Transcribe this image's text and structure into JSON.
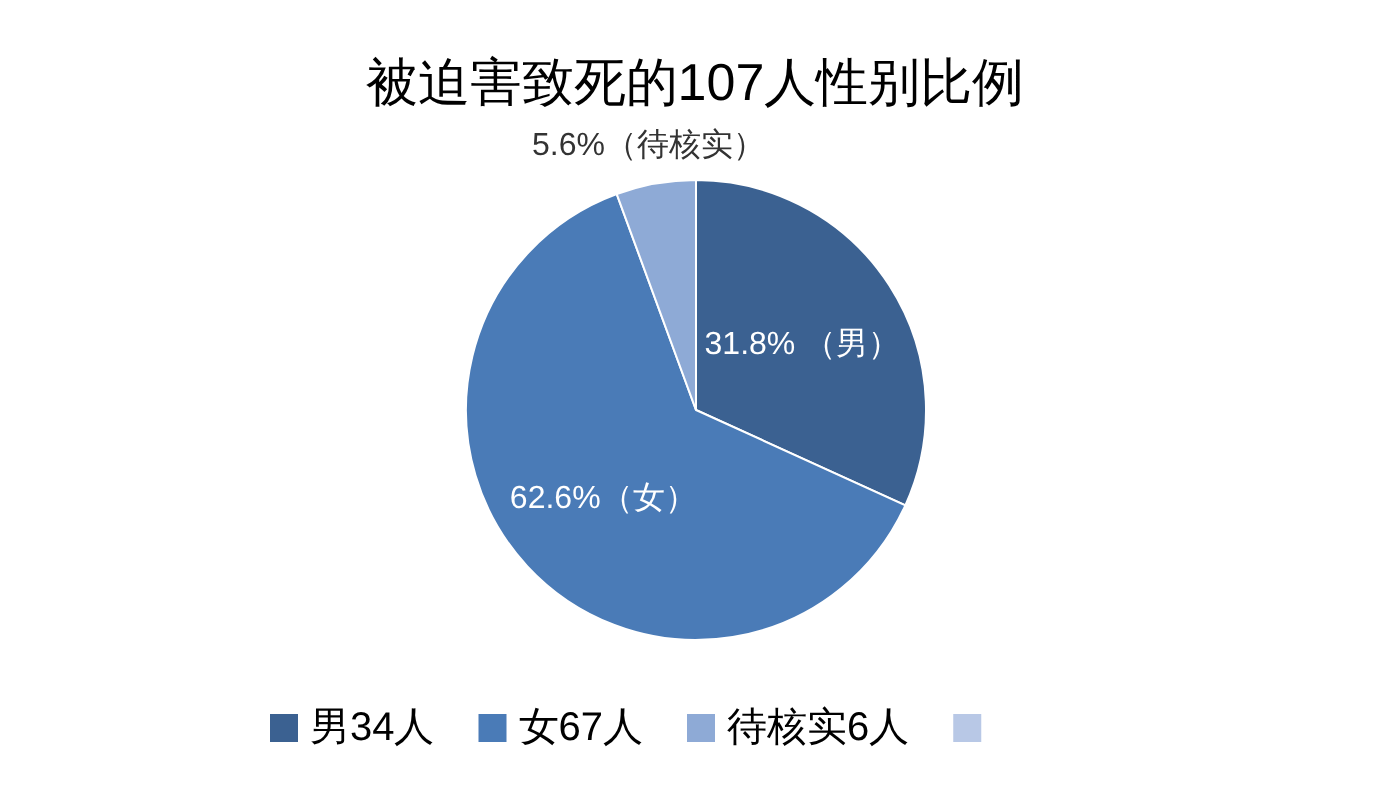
{
  "chart_data": {
    "type": "pie",
    "title": "被迫害致死的107人性别比例",
    "categories": [
      "男34人",
      "女67人",
      "待核实6人",
      null
    ],
    "values": [
      31.8,
      62.6,
      5.6,
      0
    ],
    "colors": [
      "#3b6191",
      "#4a7bb7",
      "#8eaad6",
      "#b8c8e6"
    ],
    "value_labels": [
      "31.8% （男）",
      "62.6%（女）",
      "5.6%（待核实）",
      null
    ],
    "legend": "bottom"
  }
}
